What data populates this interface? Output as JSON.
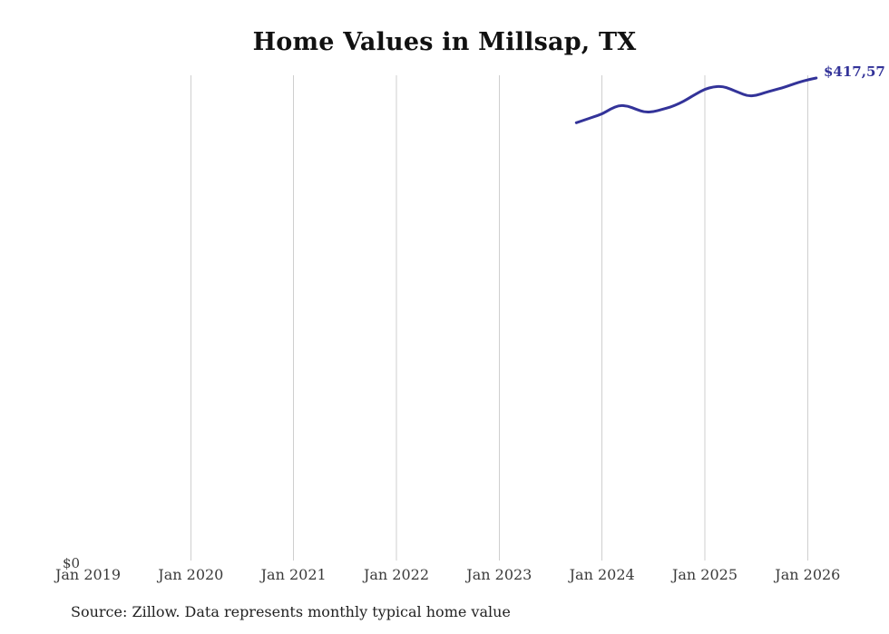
{
  "title": "Home Values in Millsap, TX",
  "source_note": "Source: Zillow. Data represents monthly typical home value",
  "y_zero_label": "$0",
  "last_value_label": "$417,57",
  "colors": {
    "line": "#333399",
    "grid": "#cfcfcf",
    "title": "#111111",
    "tick": "#3b3b3b",
    "source": "#222222"
  },
  "chart_data": {
    "type": "line",
    "title": "Home Values in Millsap, TX",
    "xlabel": "",
    "ylabel": "",
    "ylim": [
      0,
      440000
    ],
    "grid": "vertical-year-gridlines-only",
    "x_tick_labels": [
      "Jan 2019",
      "Jan 2020",
      "Jan 2021",
      "Jan 2022",
      "Jan 2023",
      "Jan 2024",
      "Jan 2025",
      "Jan 2026"
    ],
    "gridline_labels": [
      "Jan 2020",
      "Jan 2021",
      "Jan 2022",
      "Jan 2023",
      "Jan 2024",
      "Jan 2025",
      "Jan 2026"
    ],
    "last_point_label_visible": "$417,57",
    "series": [
      {
        "name": "typical_home_value",
        "x": [
          "2023-10",
          "2023-11",
          "2023-12",
          "2024-01",
          "2024-02",
          "2024-03",
          "2024-04",
          "2024-05",
          "2024-06",
          "2024-07",
          "2024-08",
          "2024-09",
          "2024-10",
          "2024-11",
          "2024-12",
          "2025-01",
          "2025-02",
          "2025-03",
          "2025-04",
          "2025-05",
          "2025-06",
          "2025-07",
          "2025-08",
          "2025-09",
          "2025-10",
          "2025-11",
          "2025-12",
          "2026-01",
          "2026-02"
        ],
        "values": [
          379000,
          381500,
          384000,
          386500,
          391000,
          394000,
          393500,
          390500,
          388000,
          388500,
          390500,
          392500,
          395500,
          399500,
          404000,
          408000,
          410000,
          410500,
          408000,
          405000,
          402000,
          402500,
          405000,
          407000,
          409000,
          411500,
          414000,
          416000,
          417570
        ]
      }
    ]
  }
}
